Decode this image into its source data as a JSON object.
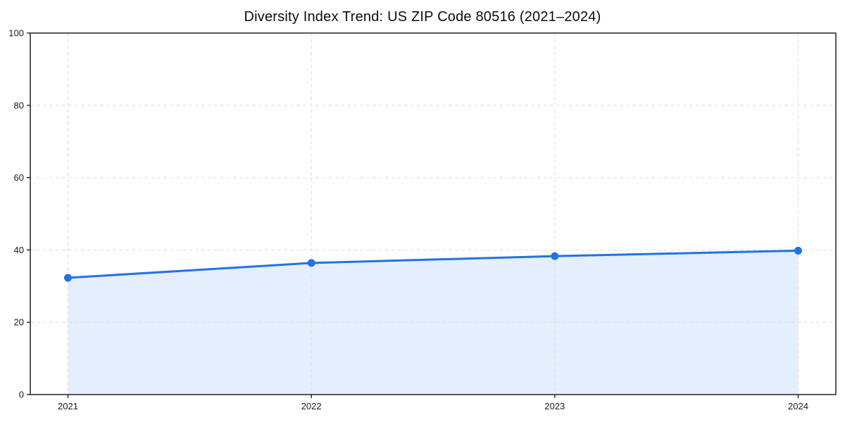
{
  "chart_data": {
    "type": "area",
    "title": "Diversity Index Trend: US ZIP Code 80516 (2021–2024)",
    "categories": [
      "2021",
      "2022",
      "2023",
      "2024"
    ],
    "series": [
      {
        "name": "Diversity Index",
        "values": [
          32.3,
          36.4,
          38.3,
          39.8
        ]
      }
    ],
    "xlabel": "",
    "ylabel": "",
    "ylim": [
      0,
      100
    ],
    "yticks": [
      0,
      20,
      40,
      60,
      80,
      100
    ],
    "grid": true,
    "grid_style": "dashed",
    "legend": false,
    "marker": "circle",
    "colors": {
      "line": "#2272e3",
      "fill": "#2272e3",
      "fill_opacity": 0.12,
      "grid": "#dedede",
      "axis": "#000000",
      "tick_text": "#1a1a1a",
      "background": "#ffffff"
    }
  }
}
